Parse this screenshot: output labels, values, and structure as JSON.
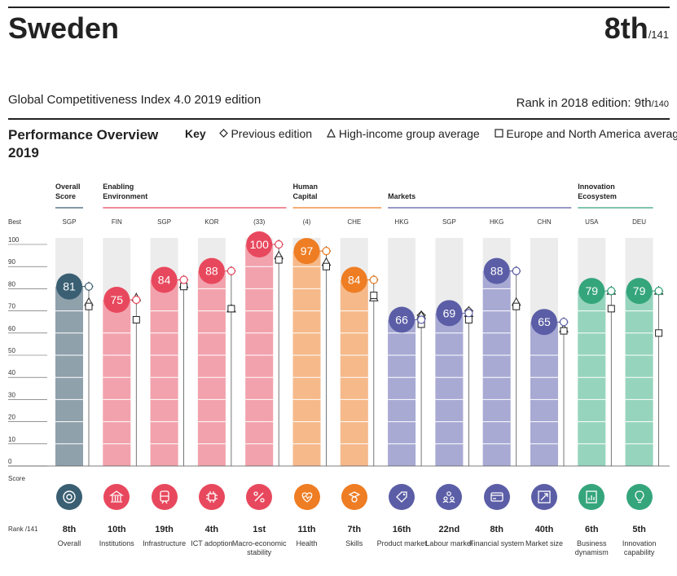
{
  "header": {
    "country": "Sweden",
    "rank": "8th",
    "rank_of": "/141",
    "subtitle": "Global Competitiveness Index 4.0 2019 edition",
    "rank_2018_label": "Rank in 2018 edition: 9th",
    "rank_2018_of": "/140"
  },
  "overview": {
    "title": "Performance Overview 2019",
    "key_label": "Key",
    "key_items": [
      "Previous edition",
      "High-income group average",
      "Europe and North America average"
    ]
  },
  "labels": {
    "best": "Best",
    "score": "Score",
    "rank": "Rank /141"
  },
  "groups": [
    {
      "name": "Overall Score",
      "color": "#3a5f73",
      "from": 0,
      "to": 0
    },
    {
      "name": "Enabling Environment",
      "color": "#e8485d",
      "from": 1,
      "to": 4
    },
    {
      "name": "Human Capital",
      "color": "#ee7d23",
      "from": 5,
      "to": 6
    },
    {
      "name": "Markets",
      "color": "#5b5ea6",
      "from": 7,
      "to": 10
    },
    {
      "name": "Innovation Ecosystem",
      "color": "#35a57c",
      "from": 11,
      "to": 12
    }
  ],
  "chart_data": {
    "type": "bar",
    "title": "Performance Overview 2019",
    "ylabel": "Score",
    "ylim": [
      0,
      100
    ],
    "yticks": [
      0,
      10,
      20,
      30,
      40,
      50,
      60,
      70,
      80,
      90,
      100
    ],
    "categories": [
      "Overall",
      "Institutions",
      "Infrastructure",
      "ICT adoption",
      "Macro-economic stability",
      "Health",
      "Skills",
      "Product market",
      "Labour market",
      "Financial system",
      "Market size",
      "Business dynamism",
      "Innovation capability"
    ],
    "best_performer": [
      "SGP",
      "FIN",
      "SGP",
      "KOR",
      "(33)",
      "(4)",
      "CHE",
      "HKG",
      "SGP",
      "HKG",
      "CHN",
      "USA",
      "DEU"
    ],
    "ranks": [
      "8th",
      "10th",
      "19th",
      "4th",
      "1st",
      "11th",
      "7th",
      "16th",
      "22nd",
      "8th",
      "40th",
      "6th",
      "5th"
    ],
    "series": [
      {
        "name": "Score",
        "values": [
          81,
          75,
          84,
          88,
          100,
          97,
          84,
          66,
          69,
          88,
          65,
          79,
          79
        ]
      },
      {
        "name": "Previous edition",
        "values": [
          81,
          75,
          84,
          88,
          100,
          97,
          84,
          68,
          70,
          88,
          65,
          79,
          79
        ]
      },
      {
        "name": "High-income group average",
        "values": [
          74,
          76,
          82,
          71,
          95,
          92,
          76,
          68,
          69,
          74,
          62,
          79,
          79
        ]
      },
      {
        "name": "Europe and North America average",
        "values": [
          72,
          66,
          81,
          71,
          93,
          90,
          77,
          64,
          66,
          72,
          61,
          71,
          60
        ]
      }
    ],
    "colors": [
      "#3a5f73",
      "#e8485d",
      "#e8485d",
      "#e8485d",
      "#e8485d",
      "#ee7d23",
      "#ee7d23",
      "#5b5ea6",
      "#5b5ea6",
      "#5b5ea6",
      "#5b5ea6",
      "#35a57c",
      "#35a57c"
    ],
    "light_colors": [
      "#8fa1ab",
      "#f2a2ad",
      "#f2a2ad",
      "#f2a2ad",
      "#f2a2ad",
      "#f6b98a",
      "#f6b98a",
      "#a8aad4",
      "#a8aad4",
      "#a8aad4",
      "#a8aad4",
      "#96d4bd",
      "#96d4bd"
    ],
    "icons": [
      "target-icon",
      "building-icon",
      "train-icon",
      "chip-icon",
      "percent-icon",
      "heartbeat-icon",
      "graduate-icon",
      "tag-icon",
      "people-icon",
      "card-icon",
      "expand-icon",
      "chart-doc-icon",
      "bulb-icon"
    ]
  }
}
